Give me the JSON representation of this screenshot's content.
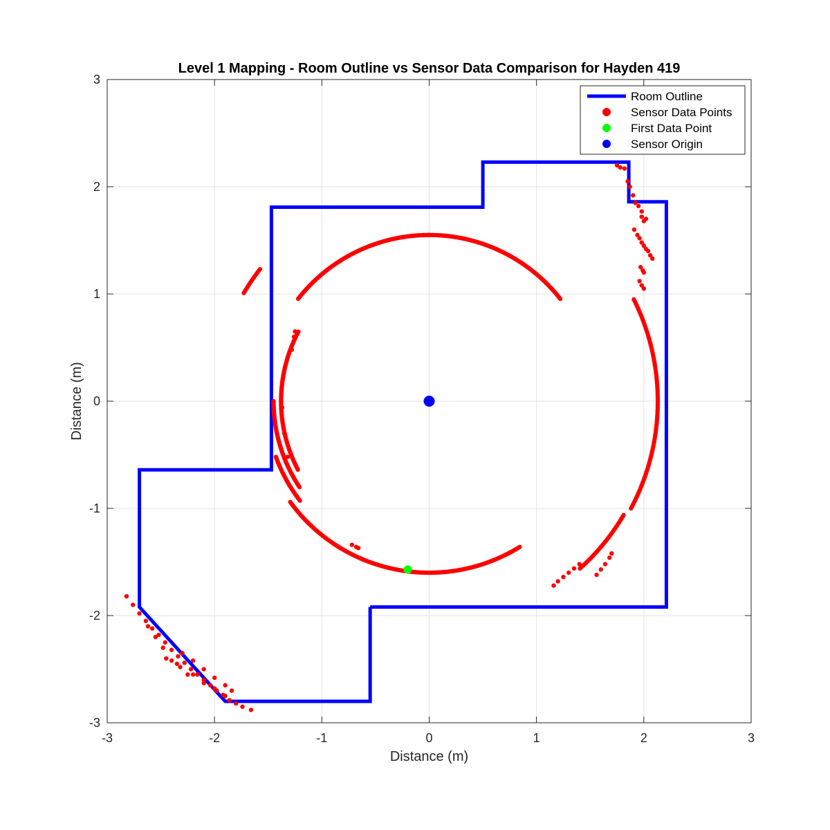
{
  "chart_data": {
    "type": "scatter",
    "title": "Level 1 Mapping - Room Outline vs Sensor Data Comparison for Hayden 419",
    "xlabel": "Distance (m)",
    "ylabel": "Distance (m)",
    "xlim": [
      -3,
      3
    ],
    "ylim": [
      -3,
      3
    ],
    "xticks": [
      "-3",
      "-2",
      "-1",
      "0",
      "1",
      "2",
      "3"
    ],
    "yticks": [
      "3",
      "2",
      "1",
      "0",
      "-1",
      "-2",
      "-3"
    ],
    "grid": true,
    "legend_position": "top-right",
    "legend": [
      {
        "label": "Room Outline",
        "kind": "line",
        "color": "#0000ff"
      },
      {
        "label": "Sensor Data Points",
        "kind": "marker",
        "color": "#ff0000"
      },
      {
        "label": "First Data Point",
        "kind": "marker",
        "color": "#00ff00"
      },
      {
        "label": "Sensor Origin",
        "kind": "marker",
        "color": "#0000ff"
      }
    ],
    "series": [
      {
        "name": "Room Outline",
        "kind": "line",
        "color": "#0000ff",
        "points": [
          [
            -0.55,
            -1.92
          ],
          [
            2.21,
            -1.92
          ],
          [
            2.21,
            1.86
          ],
          [
            1.86,
            1.86
          ],
          [
            1.86,
            2.23
          ],
          [
            0.5,
            2.23
          ],
          [
            0.5,
            1.81
          ],
          [
            -1.47,
            1.81
          ],
          [
            -1.47,
            -0.64
          ],
          [
            -2.7,
            -0.64
          ],
          [
            -2.7,
            -1.92
          ],
          [
            -1.9,
            -2.8
          ],
          [
            -0.55,
            -2.8
          ],
          [
            -0.55,
            -1.92
          ]
        ]
      },
      {
        "name": "Sensor Data Points",
        "kind": "scatter",
        "color": "#ff0000",
        "arcs": [
          {
            "r": 1.55,
            "from_deg": 38,
            "to_deg": 142
          },
          {
            "r": 2.0,
            "from_deg": 142,
            "to_deg": 150
          },
          {
            "r": 1.38,
            "from_deg": 152,
            "to_deg": 208
          },
          {
            "r": 1.45,
            "from_deg": 180,
            "to_deg": 214
          },
          {
            "r": 1.52,
            "from_deg": 200,
            "to_deg": 218
          },
          {
            "r": 1.6,
            "from_deg": 216,
            "to_deg": 240
          },
          {
            "r": 1.6,
            "from_deg": 238,
            "to_deg": 302
          },
          {
            "r": 2.13,
            "from_deg": 332,
            "to_deg": 387
          },
          {
            "r": 2.1,
            "from_deg": 312,
            "to_deg": 330
          }
        ],
        "points": [
          [
            -1.37,
            -0.06
          ],
          [
            -1.35,
            -0.3
          ],
          [
            -1.32,
            -0.52
          ],
          [
            -1.28,
            0.48
          ],
          [
            -1.26,
            0.6
          ],
          [
            -1.25,
            0.65
          ],
          [
            -0.72,
            -1.34
          ],
          [
            -0.68,
            -1.36
          ],
          [
            -0.66,
            -1.37
          ],
          [
            1.16,
            -1.72
          ],
          [
            1.2,
            -1.68
          ],
          [
            1.25,
            -1.64
          ],
          [
            1.3,
            -1.6
          ],
          [
            1.35,
            -1.56
          ],
          [
            1.4,
            -1.52
          ],
          [
            1.56,
            -1.62
          ],
          [
            1.6,
            -1.57
          ],
          [
            1.64,
            -1.52
          ],
          [
            1.68,
            -1.46
          ],
          [
            1.7,
            -1.42
          ],
          [
            1.75,
            2.2
          ],
          [
            1.78,
            2.18
          ],
          [
            1.82,
            2.17
          ],
          [
            1.85,
            2.05
          ],
          [
            1.87,
            2.0
          ],
          [
            1.9,
            1.92
          ],
          [
            1.92,
            1.85
          ],
          [
            1.95,
            1.82
          ],
          [
            1.98,
            1.77
          ],
          [
            1.91,
            1.6
          ],
          [
            1.94,
            1.55
          ],
          [
            1.96,
            1.52
          ],
          [
            1.98,
            1.48
          ],
          [
            2.0,
            1.45
          ],
          [
            2.02,
            1.42
          ],
          [
            2.04,
            1.4
          ],
          [
            2.06,
            1.36
          ],
          [
            2.08,
            1.33
          ],
          [
            1.98,
            1.72
          ],
          [
            2.0,
            1.68
          ],
          [
            2.02,
            1.7
          ],
          [
            1.97,
            1.25
          ],
          [
            1.99,
            1.22
          ],
          [
            2.0,
            1.2
          ],
          [
            1.96,
            1.12
          ],
          [
            1.98,
            1.08
          ],
          [
            2.0,
            1.05
          ],
          [
            -2.82,
            -1.82
          ],
          [
            -2.76,
            -1.9
          ],
          [
            -2.7,
            -1.98
          ],
          [
            -2.64,
            -2.05
          ],
          [
            -2.58,
            -2.12
          ],
          [
            -2.52,
            -2.18
          ],
          [
            -2.46,
            -2.25
          ],
          [
            -2.4,
            -2.32
          ],
          [
            -2.34,
            -2.38
          ],
          [
            -2.28,
            -2.44
          ],
          [
            -2.22,
            -2.5
          ],
          [
            -2.16,
            -2.55
          ],
          [
            -2.1,
            -2.6
          ],
          [
            -2.04,
            -2.65
          ],
          [
            -1.98,
            -2.7
          ],
          [
            -1.92,
            -2.74
          ],
          [
            -1.86,
            -2.79
          ],
          [
            -1.8,
            -2.82
          ],
          [
            -1.74,
            -2.85
          ],
          [
            -1.66,
            -2.88
          ],
          [
            -2.62,
            -2.1
          ],
          [
            -2.55,
            -2.2
          ],
          [
            -2.48,
            -2.3
          ],
          [
            -2.4,
            -2.42
          ],
          [
            -2.32,
            -2.48
          ],
          [
            -2.25,
            -2.55
          ],
          [
            -2.45,
            -2.4
          ],
          [
            -2.35,
            -2.45
          ],
          [
            -2.2,
            -2.55
          ],
          [
            -2.1,
            -2.63
          ],
          [
            -2.0,
            -2.68
          ],
          [
            -1.9,
            -2.75
          ],
          [
            -2.3,
            -2.35
          ],
          [
            -2.2,
            -2.42
          ],
          [
            -2.1,
            -2.5
          ],
          [
            -2.0,
            -2.58
          ],
          [
            -1.9,
            -2.65
          ],
          [
            -1.84,
            -2.7
          ]
        ]
      },
      {
        "name": "First Data Point",
        "kind": "marker",
        "color": "#00ff00",
        "points": [
          [
            -0.2,
            -1.57
          ]
        ]
      },
      {
        "name": "Sensor Origin",
        "kind": "marker",
        "color": "#0000ff",
        "points": [
          [
            0,
            0
          ]
        ]
      }
    ]
  }
}
